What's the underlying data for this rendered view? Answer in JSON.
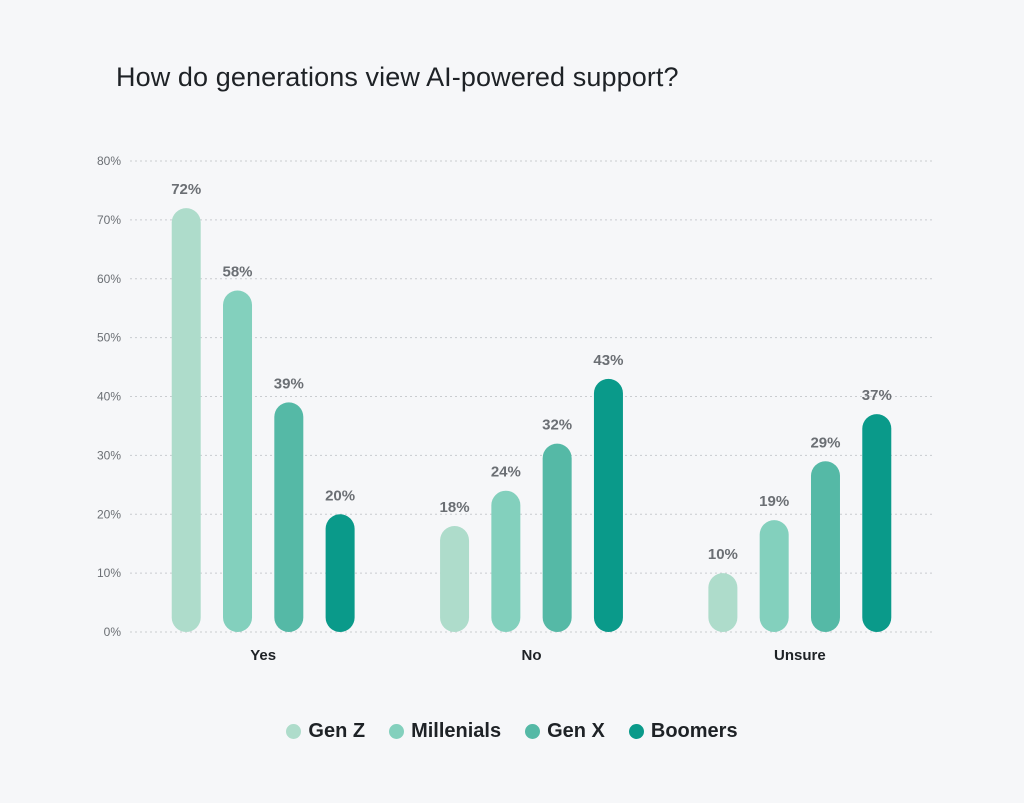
{
  "chart_data": {
    "type": "bar",
    "title": "How do generations view AI-powered support?",
    "xlabel": "",
    "ylabel": "",
    "categories": [
      "Yes",
      "No",
      "Unsure"
    ],
    "series": [
      {
        "name": "Gen Z",
        "values": [
          72,
          18,
          10
        ],
        "color": "#aedccb"
      },
      {
        "name": "Millenials",
        "values": [
          58,
          24,
          19
        ],
        "color": "#83d0bd"
      },
      {
        "name": "Gen X",
        "values": [
          39,
          32,
          29
        ],
        "color": "#55b9a6"
      },
      {
        "name": "Boomers",
        "values": [
          20,
          43,
          37
        ],
        "color": "#0a9a8a"
      }
    ],
    "data_labels": [
      [
        "72%",
        "18%",
        "10%"
      ],
      [
        "58%",
        "24%",
        "19%"
      ],
      [
        "39%",
        "32%",
        "29%"
      ],
      [
        "20%",
        "43%",
        "37%"
      ]
    ],
    "yticks": [
      "0%",
      "10%",
      "20%",
      "30%",
      "40%",
      "50%",
      "60%",
      "70%",
      "80%"
    ],
    "ylim": [
      0,
      80
    ],
    "grid": true,
    "legend_position": "bottom"
  }
}
